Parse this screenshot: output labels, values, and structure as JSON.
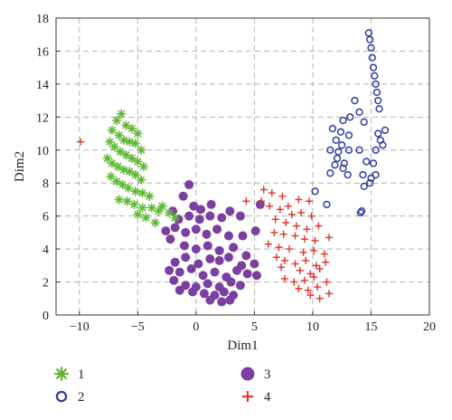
{
  "chart_data": {
    "type": "scatter",
    "title": "",
    "xlabel": "Dim1",
    "ylabel": "Dim2",
    "xlim": [
      -12,
      20
    ],
    "ylim": [
      0,
      18
    ],
    "xticks": [
      -10,
      -5,
      0,
      5,
      10,
      15,
      20
    ],
    "yticks": [
      0,
      2,
      4,
      6,
      8,
      10,
      12,
      14,
      16,
      18
    ],
    "xtick_labels": [
      "−10",
      "−5",
      "0",
      "5",
      "10",
      "15",
      "20"
    ],
    "ytick_labels": [
      "0",
      "2",
      "4",
      "6",
      "8",
      "10",
      "12",
      "14",
      "16",
      "18"
    ],
    "grid": true,
    "legend_position": "below",
    "series": [
      {
        "name": "1",
        "marker": "asterisk",
        "color": "#5cb82f",
        "points": [
          [
            -6.8,
            11.8
          ],
          [
            -6.4,
            12.2
          ],
          [
            -6.0,
            11.5
          ],
          [
            -5.5,
            11.3
          ],
          [
            -5.0,
            11.0
          ],
          [
            -7.2,
            11.2
          ],
          [
            -6.6,
            10.9
          ],
          [
            -6.2,
            10.6
          ],
          [
            -5.7,
            10.5
          ],
          [
            -5.2,
            10.4
          ],
          [
            -4.7,
            10.0
          ],
          [
            -7.4,
            10.5
          ],
          [
            -7.0,
            10.2
          ],
          [
            -6.5,
            9.9
          ],
          [
            -6.0,
            9.7
          ],
          [
            -5.5,
            9.5
          ],
          [
            -5.0,
            9.3
          ],
          [
            -4.5,
            9.0
          ],
          [
            -7.6,
            9.5
          ],
          [
            -7.2,
            9.2
          ],
          [
            -6.7,
            9.0
          ],
          [
            -6.2,
            8.8
          ],
          [
            -5.7,
            8.7
          ],
          [
            -5.2,
            8.5
          ],
          [
            -4.7,
            8.2
          ],
          [
            -7.3,
            8.4
          ],
          [
            -6.8,
            8.1
          ],
          [
            -6.3,
            7.9
          ],
          [
            -5.8,
            7.7
          ],
          [
            -5.2,
            7.5
          ],
          [
            -4.6,
            7.4
          ],
          [
            -4.0,
            7.2
          ],
          [
            -6.6,
            7.0
          ],
          [
            -5.9,
            6.9
          ],
          [
            -5.3,
            6.7
          ],
          [
            -4.6,
            6.5
          ],
          [
            -3.8,
            6.5
          ],
          [
            -3.2,
            6.3
          ],
          [
            -5.0,
            6.1
          ],
          [
            -4.3,
            5.9
          ],
          [
            -2.9,
            6.6
          ],
          [
            -2.3,
            6.2
          ],
          [
            -1.8,
            5.9
          ],
          [
            -3.5,
            5.6
          ]
        ]
      },
      {
        "name": "2",
        "marker": "circle-open",
        "color": "#2e3d9c",
        "points": [
          [
            14.8,
            17.1
          ],
          [
            14.9,
            16.7
          ],
          [
            15.0,
            16.2
          ],
          [
            15.1,
            15.6
          ],
          [
            15.2,
            15.0
          ],
          [
            15.3,
            14.5
          ],
          [
            15.4,
            14.0
          ],
          [
            15.5,
            13.5
          ],
          [
            15.6,
            13.0
          ],
          [
            15.7,
            12.5
          ],
          [
            13.6,
            13.0
          ],
          [
            14.0,
            12.3
          ],
          [
            14.4,
            11.7
          ],
          [
            13.2,
            12.0
          ],
          [
            12.6,
            11.8
          ],
          [
            11.7,
            11.3
          ],
          [
            12.4,
            11.1
          ],
          [
            13.1,
            10.9
          ],
          [
            15.6,
            11.0
          ],
          [
            16.2,
            11.2
          ],
          [
            15.8,
            10.6
          ],
          [
            16.0,
            10.3
          ],
          [
            12.0,
            10.6
          ],
          [
            12.5,
            10.3
          ],
          [
            11.5,
            10.0
          ],
          [
            12.2,
            9.9
          ],
          [
            13.1,
            10.0
          ],
          [
            14.0,
            10.0
          ],
          [
            15.4,
            10.0
          ],
          [
            12.1,
            9.5
          ],
          [
            12.7,
            9.2
          ],
          [
            11.9,
            9.1
          ],
          [
            14.6,
            9.3
          ],
          [
            15.2,
            9.2
          ],
          [
            12.6,
            8.9
          ],
          [
            13.0,
            8.5
          ],
          [
            11.5,
            8.6
          ],
          [
            14.3,
            8.5
          ],
          [
            15.4,
            8.5
          ],
          [
            14.9,
            8.0
          ],
          [
            14.4,
            7.8
          ],
          [
            10.2,
            7.5
          ],
          [
            11.2,
            6.7
          ],
          [
            14.2,
            6.3
          ],
          [
            14.1,
            6.2
          ],
          [
            15.0,
            8.3
          ]
        ]
      },
      {
        "name": "3",
        "marker": "circle-filled",
        "color": "#7b3fa2",
        "points": [
          [
            -0.6,
            7.9
          ],
          [
            -1.1,
            7.2
          ],
          [
            -0.2,
            6.6
          ],
          [
            0.4,
            6.4
          ],
          [
            1.3,
            6.7
          ],
          [
            -2.0,
            6.3
          ],
          [
            -1.5,
            5.8
          ],
          [
            -0.6,
            6.0
          ],
          [
            0.3,
            5.8
          ],
          [
            1.2,
            6.0
          ],
          [
            2.2,
            5.9
          ],
          [
            2.9,
            6.3
          ],
          [
            3.8,
            6.0
          ],
          [
            -2.6,
            5.1
          ],
          [
            -1.8,
            5.3
          ],
          [
            -0.9,
            5.0
          ],
          [
            0.0,
            5.2
          ],
          [
            0.9,
            4.9
          ],
          [
            1.8,
            5.2
          ],
          [
            2.8,
            4.8
          ],
          [
            4.0,
            4.8
          ],
          [
            5.1,
            5.1
          ],
          [
            5.5,
            6.7
          ],
          [
            -2.2,
            4.6
          ],
          [
            -1.0,
            4.2
          ],
          [
            0.0,
            4.0
          ],
          [
            1.0,
            4.2
          ],
          [
            2.0,
            3.9
          ],
          [
            3.2,
            4.1
          ],
          [
            4.3,
            3.6
          ],
          [
            -1.8,
            3.2
          ],
          [
            -0.9,
            3.5
          ],
          [
            0.2,
            3.1
          ],
          [
            1.2,
            3.4
          ],
          [
            2.0,
            3.3
          ],
          [
            2.8,
            3.5
          ],
          [
            3.9,
            3.0
          ],
          [
            5.0,
            3.1
          ],
          [
            -2.3,
            2.7
          ],
          [
            -1.4,
            2.6
          ],
          [
            -0.4,
            2.8
          ],
          [
            0.6,
            2.4
          ],
          [
            1.6,
            2.6
          ],
          [
            2.6,
            2.3
          ],
          [
            3.5,
            2.7
          ],
          [
            4.4,
            2.5
          ],
          [
            5.2,
            2.4
          ],
          [
            -1.9,
            2.1
          ],
          [
            -0.9,
            1.8
          ],
          [
            0.0,
            1.7
          ],
          [
            1.0,
            1.9
          ],
          [
            2.0,
            1.7
          ],
          [
            3.0,
            2.0
          ],
          [
            3.8,
            1.8
          ],
          [
            -1.4,
            1.5
          ],
          [
            -0.3,
            1.4
          ],
          [
            0.7,
            1.3
          ],
          [
            1.6,
            1.2
          ],
          [
            2.4,
            1.4
          ],
          [
            3.2,
            1.2
          ],
          [
            1.2,
            0.9
          ],
          [
            2.2,
            0.8
          ],
          [
            2.9,
            0.9
          ]
        ]
      },
      {
        "name": "4",
        "marker": "plus",
        "color": "#e53027",
        "points": [
          [
            -9.9,
            10.5
          ],
          [
            4.3,
            6.9
          ],
          [
            5.8,
            7.6
          ],
          [
            6.5,
            7.4
          ],
          [
            7.4,
            7.2
          ],
          [
            5.6,
            6.9
          ],
          [
            6.3,
            6.6
          ],
          [
            7.2,
            6.4
          ],
          [
            7.9,
            6.6
          ],
          [
            8.8,
            7.0
          ],
          [
            9.7,
            6.9
          ],
          [
            8.2,
            6.1
          ],
          [
            9.0,
            6.2
          ],
          [
            9.9,
            6.0
          ],
          [
            6.8,
            5.8
          ],
          [
            7.7,
            5.6
          ],
          [
            8.6,
            5.4
          ],
          [
            9.5,
            5.2
          ],
          [
            10.5,
            5.4
          ],
          [
            6.7,
            5.0
          ],
          [
            7.5,
            4.9
          ],
          [
            8.5,
            4.8
          ],
          [
            9.3,
            4.6
          ],
          [
            10.2,
            4.5
          ],
          [
            11.4,
            4.7
          ],
          [
            6.2,
            4.3
          ],
          [
            7.1,
            4.1
          ],
          [
            8.0,
            4.0
          ],
          [
            9.2,
            3.8
          ],
          [
            10.1,
            3.9
          ],
          [
            11.0,
            3.7
          ],
          [
            6.9,
            3.5
          ],
          [
            7.6,
            3.3
          ],
          [
            8.5,
            3.1
          ],
          [
            9.4,
            3.3
          ],
          [
            10.3,
            3.0
          ],
          [
            11.1,
            3.2
          ],
          [
            7.3,
            2.9
          ],
          [
            8.9,
            2.7
          ],
          [
            9.8,
            2.5
          ],
          [
            10.6,
            2.8
          ],
          [
            7.6,
            2.2
          ],
          [
            8.4,
            2.0
          ],
          [
            9.3,
            2.1
          ],
          [
            10.1,
            2.3
          ],
          [
            11.2,
            2.0
          ],
          [
            8.8,
            1.6
          ],
          [
            9.6,
            1.5
          ],
          [
            10.4,
            1.7
          ],
          [
            9.8,
            1.2
          ],
          [
            10.6,
            1.0
          ],
          [
            11.4,
            1.3
          ]
        ]
      }
    ]
  },
  "legend": [
    {
      "label": "1",
      "marker": "asterisk",
      "color": "#5cb82f"
    },
    {
      "label": "2",
      "marker": "circle-open",
      "color": "#2e3d9c"
    },
    {
      "label": "3",
      "marker": "circle-filled",
      "color": "#7b3fa2"
    },
    {
      "label": "4",
      "marker": "plus",
      "color": "#e53027"
    }
  ]
}
